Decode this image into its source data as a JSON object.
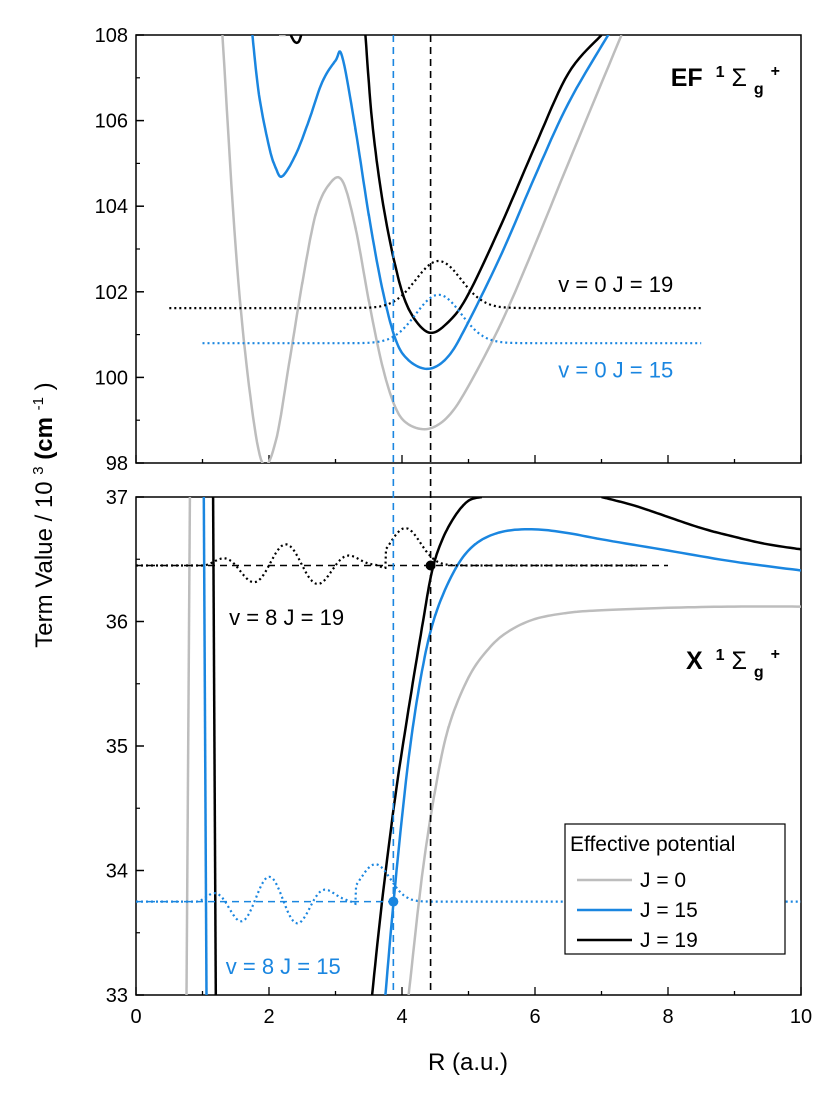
{
  "chart_data": [
    {
      "panel": "upper",
      "type": "line",
      "label": "EF",
      "label_sup": "1",
      "label_sym": "Σ",
      "label_sub": "g",
      "label_sup2": "+",
      "xlim": [
        0,
        10
      ],
      "ylim": [
        98,
        108
      ],
      "yticks": [
        "98",
        "100",
        "102",
        "104",
        "106",
        "108"
      ],
      "ytick_values": [
        98,
        100,
        102,
        104,
        106,
        108
      ],
      "series": [
        {
          "name": "J = 0",
          "color": "#bdbdbd",
          "style": "solid",
          "x": [
            1.3,
            1.5,
            1.7,
            1.9,
            2.1,
            2.3,
            2.5,
            2.7,
            2.9,
            3.1,
            3.3,
            3.5,
            3.7,
            3.9,
            4.1,
            4.4,
            4.7,
            5.0,
            5.5,
            6.0,
            6.5,
            7.3
          ],
          "y": [
            108,
            103.0,
            99.8,
            98.0,
            98.5,
            100.3,
            102.2,
            103.8,
            104.5,
            104.6,
            103.5,
            101.8,
            100.3,
            99.3,
            98.9,
            98.8,
            99.1,
            99.8,
            101.3,
            103.1,
            105.0,
            108
          ]
        },
        {
          "name": "J = 15",
          "color": "#1a86e0",
          "style": "solid",
          "x": [
            1.75,
            1.85,
            2.0,
            2.1,
            2.2,
            2.4,
            2.6,
            2.8,
            3.0,
            3.1,
            3.3,
            3.5,
            3.7,
            3.9,
            4.1,
            4.4,
            4.7,
            5.0,
            5.5,
            6.0,
            6.5,
            7.1
          ],
          "y": [
            108,
            106.6,
            105.4,
            104.9,
            104.7,
            105.2,
            106.0,
            106.9,
            107.4,
            107.5,
            105.8,
            103.8,
            102.1,
            100.9,
            100.4,
            100.2,
            100.5,
            101.3,
            102.9,
            104.7,
            106.4,
            108
          ]
        },
        {
          "name": "J = 19",
          "color": "#000000",
          "style": "solid",
          "x": [
            3.45,
            3.55,
            3.7,
            3.9,
            4.1,
            4.4,
            4.7,
            5.0,
            5.5,
            6.0,
            6.5,
            7.0
          ],
          "y": [
            108,
            106.0,
            104.2,
            102.6,
            101.6,
            101.05,
            101.3,
            101.95,
            103.6,
            105.4,
            107.1,
            108
          ]
        },
        {
          "name": "v = 0 J = 19",
          "color": "#000000",
          "style": "dotted",
          "kind": "wavefunction",
          "baseline": 101.62,
          "center": 4.55,
          "sigma": 0.48,
          "amplitude": 1.1,
          "x_from": 0.5,
          "x_to": 8.5
        },
        {
          "name": "v = 0 J = 15",
          "color": "#1a86e0",
          "style": "dotted",
          "kind": "wavefunction",
          "baseline": 100.8,
          "center": 4.55,
          "sigma": 0.48,
          "amplitude": 1.13,
          "x_from": 1.0,
          "x_to": 8.5
        },
        {
          "name": "J = 0 outer barrier",
          "color": "#bdbdbd",
          "style": "solid",
          "x": [
            2.15,
            2.2,
            2.25
          ],
          "y": [
            108,
            108,
            108
          ]
        },
        {
          "name": "J = 19 top",
          "color": "#000000",
          "style": "solid",
          "x": [
            2.3,
            2.38,
            2.45,
            2.5
          ],
          "y": [
            108.1,
            107.85,
            107.85,
            108.1
          ]
        }
      ],
      "annotations": [
        {
          "text": "v = 0 J = 19",
          "x": 6.35,
          "y": 102.0,
          "color": "#000000"
        },
        {
          "text": "v = 0 J = 15",
          "x": 6.35,
          "y": 100.0,
          "color": "#1a86e0"
        }
      ]
    },
    {
      "panel": "lower",
      "type": "line",
      "label": "X",
      "label_sup": "1",
      "label_sym": "Σ",
      "label_sub": "g",
      "label_sup2": "+",
      "xlim": [
        0,
        10
      ],
      "ylim": [
        33,
        37
      ],
      "yticks": [
        "33",
        "34",
        "35",
        "36",
        "37"
      ],
      "ytick_values": [
        33,
        34,
        35,
        36,
        37
      ],
      "xticks": [
        "0",
        "2",
        "4",
        "6",
        "8",
        "10"
      ],
      "xtick_values": [
        0,
        2,
        4,
        6,
        8,
        10
      ],
      "series": [
        {
          "name": "J = 0",
          "color": "#bdbdbd",
          "style": "solid",
          "inner": {
            "x": [
              0.76,
              0.81
            ],
            "y": [
              33,
              37
            ]
          },
          "x": [
            4.1,
            4.3,
            4.5,
            4.7,
            5.0,
            5.3,
            5.6,
            6.0,
            6.5,
            7.0,
            8.0,
            9.0,
            10.0
          ],
          "y": [
            33.0,
            33.95,
            34.65,
            35.15,
            35.55,
            35.78,
            35.92,
            36.02,
            36.07,
            36.09,
            36.11,
            36.12,
            36.12
          ]
        },
        {
          "name": "J = 15",
          "color": "#1a86e0",
          "style": "solid",
          "inner": {
            "x": [
              1.06,
              1.02
            ],
            "y": [
              33,
              37
            ]
          },
          "x": [
            3.75,
            3.9,
            4.1,
            4.3,
            4.5,
            4.8,
            5.1,
            5.5,
            6.0,
            6.5,
            7.0,
            8.0,
            9.0,
            10.0
          ],
          "y": [
            33.0,
            33.9,
            34.9,
            35.6,
            36.05,
            36.42,
            36.62,
            36.72,
            36.74,
            36.71,
            36.66,
            36.57,
            36.48,
            36.41
          ]
        },
        {
          "name": "J = 19",
          "color": "#000000",
          "style": "solid",
          "inner": {
            "x": [
              1.2,
              1.16
            ],
            "y": [
              33,
              37
            ]
          },
          "x": [
            3.55,
            3.7,
            3.9,
            4.1,
            4.3,
            4.45,
            4.6,
            4.8,
            5.0,
            5.2
          ],
          "y": [
            33.0,
            33.75,
            34.6,
            35.3,
            35.95,
            36.4,
            36.65,
            36.85,
            36.97,
            37.0
          ]
        },
        {
          "name": "J = 19 tail",
          "color": "#000000",
          "style": "solid",
          "x": [
            7.0,
            7.5,
            8.0,
            8.5,
            9.0,
            9.5,
            10.0
          ],
          "y": [
            37.0,
            36.93,
            36.84,
            36.75,
            36.68,
            36.62,
            36.58
          ]
        },
        {
          "name": "v = 8 J = 19",
          "color": "#000000",
          "style": "dotted",
          "kind": "oscillation",
          "baseline": 36.45,
          "x_from": 0.0,
          "x_to": 7.6,
          "x_start": 1.0,
          "x_end": 5.2,
          "nodes": 8,
          "amp_inner": 0.17,
          "amp_outer": 0.3,
          "outer_center": 4.05
        },
        {
          "name": "v = 8 J = 15",
          "color": "#1a86e0",
          "style": "dotted",
          "kind": "oscillation",
          "baseline": 33.75,
          "x_from": 0.0,
          "x_to": 10.0,
          "x_start": 0.9,
          "x_end": 4.6,
          "nodes": 8,
          "amp_inner": 0.2,
          "amp_outer": 0.3,
          "outer_center": 3.6
        }
      ],
      "markers": [
        {
          "x": 4.43,
          "y": 36.45,
          "color": "#000000"
        },
        {
          "x": 3.87,
          "y": 33.75,
          "color": "#1a86e0"
        }
      ],
      "hlines": [
        {
          "y": 36.45,
          "x_from": 0,
          "x_to": 8.0,
          "color": "#000000",
          "style": "dashed"
        },
        {
          "y": 33.75,
          "x_from": 0,
          "x_to": 3.87,
          "color": "#1a86e0",
          "style": "dashed"
        }
      ],
      "annotations": [
        {
          "text": "v = 8 J = 19",
          "x": 1.4,
          "y": 35.97,
          "color": "#000000"
        },
        {
          "text": "v = 8 J = 15",
          "x": 1.35,
          "y": 33.17,
          "color": "#1a86e0"
        }
      ],
      "legend": {
        "title": "Effective potential",
        "placement": "bottom-right",
        "entries": [
          {
            "label": "J = 0",
            "color": "#bdbdbd"
          },
          {
            "label": "J = 15",
            "color": "#1a86e0"
          },
          {
            "label": "J = 19",
            "color": "#000000"
          }
        ]
      }
    }
  ],
  "vertical_lines": [
    {
      "x": 3.87,
      "color": "#1a86e0",
      "style": "dashed"
    },
    {
      "x": 4.43,
      "color": "#000000",
      "style": "dashed"
    }
  ],
  "xlabel": "R (a.u.)",
  "ylabel_main": "Term Value / 10",
  "ylabel_sup": "3",
  "ylabel_unit": " (cm",
  "ylabel_unit_sup": "-1",
  "ylabel_close": ")"
}
